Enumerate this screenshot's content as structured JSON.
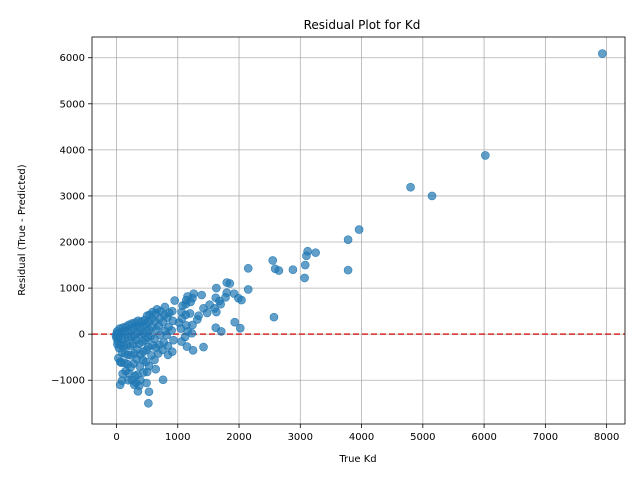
{
  "chart_data": {
    "type": "scatter",
    "title": "Residual Plot for Kd",
    "xlabel": "True Kd",
    "ylabel": "Residual (True - Predicted)",
    "xlim": [
      -400,
      8300
    ],
    "ylim": [
      -1950,
      6450
    ],
    "xticks": [
      0,
      1000,
      2000,
      3000,
      4000,
      5000,
      6000,
      7000,
      8000
    ],
    "yticks": [
      -1000,
      0,
      1000,
      2000,
      3000,
      4000,
      5000,
      6000
    ],
    "grid": true,
    "reference_line": {
      "y": 0,
      "color": "#d62728",
      "style": "dashed"
    },
    "point_color": "#1f77b4",
    "series": [
      {
        "points": [
          [
            7930,
            6090
          ],
          [
            6020,
            3880
          ],
          [
            4800,
            3190
          ],
          [
            5150,
            3000
          ],
          [
            3960,
            2270
          ],
          [
            3780,
            2050
          ],
          [
            3780,
            1390
          ],
          [
            3120,
            1800
          ],
          [
            3250,
            1770
          ],
          [
            3100,
            1700
          ],
          [
            3080,
            1500
          ],
          [
            3070,
            1220
          ],
          [
            2880,
            1400
          ],
          [
            2650,
            1380
          ],
          [
            2590,
            1420
          ],
          [
            2550,
            1600
          ],
          [
            2570,
            370
          ],
          [
            2150,
            1430
          ],
          [
            2150,
            970
          ],
          [
            2040,
            740
          ],
          [
            1990,
            780
          ],
          [
            2020,
            130
          ],
          [
            1920,
            880
          ],
          [
            1930,
            260
          ],
          [
            1850,
            1100
          ],
          [
            1800,
            1120
          ],
          [
            1800,
            900
          ],
          [
            1780,
            800
          ],
          [
            1700,
            650
          ],
          [
            1680,
            720
          ],
          [
            1710,
            60
          ],
          [
            1630,
            480
          ],
          [
            1630,
            1000
          ],
          [
            1620,
            790
          ],
          [
            1600,
            560
          ],
          [
            1620,
            140
          ],
          [
            1520,
            640
          ],
          [
            1480,
            460
          ],
          [
            1420,
            560
          ],
          [
            1420,
            -280
          ],
          [
            1390,
            850
          ],
          [
            1340,
            400
          ],
          [
            1320,
            320
          ],
          [
            1260,
            880
          ],
          [
            1240,
            780
          ],
          [
            1210,
            700
          ],
          [
            1200,
            450
          ],
          [
            1240,
            200
          ],
          [
            1230,
            20
          ],
          [
            1250,
            -350
          ],
          [
            1160,
            820
          ],
          [
            1140,
            740
          ],
          [
            1130,
            650
          ],
          [
            1130,
            420
          ],
          [
            1140,
            190
          ],
          [
            1160,
            60
          ],
          [
            1120,
            -60
          ],
          [
            1150,
            -270
          ],
          [
            1080,
            620
          ],
          [
            1060,
            480
          ],
          [
            1070,
            340
          ],
          [
            1050,
            120
          ],
          [
            1060,
            -160
          ],
          [
            1020,
            250
          ],
          [
            950,
            730
          ],
          [
            910,
            500
          ],
          [
            920,
            290
          ],
          [
            900,
            80
          ],
          [
            930,
            -130
          ],
          [
            910,
            -380
          ],
          [
            860,
            460
          ],
          [
            830,
            360
          ],
          [
            850,
            160
          ],
          [
            820,
            -20
          ],
          [
            840,
            -260
          ],
          [
            840,
            -450
          ],
          [
            790,
            590
          ],
          [
            780,
            420
          ],
          [
            760,
            260
          ],
          [
            790,
            70
          ],
          [
            770,
            -180
          ],
          [
            750,
            -340
          ],
          [
            760,
            -990
          ],
          [
            720,
            500
          ],
          [
            700,
            340
          ],
          [
            690,
            180
          ],
          [
            710,
            -20
          ],
          [
            700,
            -230
          ],
          [
            680,
            -420
          ],
          [
            660,
            540
          ],
          [
            640,
            450
          ],
          [
            630,
            280
          ],
          [
            650,
            100
          ],
          [
            620,
            -100
          ],
          [
            640,
            -290
          ],
          [
            640,
            -760
          ],
          [
            620,
            -560
          ],
          [
            590,
            480
          ],
          [
            570,
            330
          ],
          [
            580,
            150
          ],
          [
            560,
            -40
          ],
          [
            590,
            -240
          ],
          [
            570,
            -460
          ],
          [
            540,
            420
          ],
          [
            520,
            260
          ],
          [
            530,
            90
          ],
          [
            510,
            -80
          ],
          [
            520,
            -280
          ],
          [
            530,
            -690
          ],
          [
            500,
            400
          ],
          [
            480,
            220
          ],
          [
            490,
            60
          ],
          [
            470,
            -130
          ],
          [
            490,
            -340
          ],
          [
            480,
            -600
          ],
          [
            500,
            -820
          ],
          [
            490,
            -1060
          ],
          [
            530,
            -1250
          ],
          [
            520,
            -1500
          ],
          [
            450,
            300
          ],
          [
            430,
            180
          ],
          [
            440,
            20
          ],
          [
            420,
            -160
          ],
          [
            440,
            -380
          ],
          [
            430,
            -560
          ],
          [
            440,
            -830
          ],
          [
            400,
            270
          ],
          [
            380,
            140
          ],
          [
            390,
            -10
          ],
          [
            370,
            -210
          ],
          [
            390,
            -440
          ],
          [
            380,
            -700
          ],
          [
            390,
            -1000
          ],
          [
            370,
            -1120
          ],
          [
            350,
            290
          ],
          [
            330,
            170
          ],
          [
            340,
            30
          ],
          [
            320,
            -130
          ],
          [
            340,
            -330
          ],
          [
            330,
            -540
          ],
          [
            340,
            -880
          ],
          [
            320,
            -1060
          ],
          [
            350,
            -1240
          ],
          [
            300,
            250
          ],
          [
            280,
            120
          ],
          [
            290,
            -40
          ],
          [
            270,
            -220
          ],
          [
            290,
            -420
          ],
          [
            280,
            -640
          ],
          [
            300,
            -900
          ],
          [
            290,
            -1100
          ],
          [
            250,
            230
          ],
          [
            230,
            100
          ],
          [
            240,
            -60
          ],
          [
            220,
            -260
          ],
          [
            240,
            -460
          ],
          [
            230,
            -720
          ],
          [
            250,
            -1000
          ],
          [
            200,
            200
          ],
          [
            180,
            80
          ],
          [
            190,
            -70
          ],
          [
            170,
            -240
          ],
          [
            190,
            -450
          ],
          [
            180,
            -650
          ],
          [
            200,
            -850
          ],
          [
            190,
            -1000
          ],
          [
            150,
            160
          ],
          [
            130,
            60
          ],
          [
            140,
            -90
          ],
          [
            120,
            -250
          ],
          [
            140,
            -420
          ],
          [
            130,
            -620
          ],
          [
            150,
            -800
          ],
          [
            100,
            140
          ],
          [
            80,
            40
          ],
          [
            90,
            -100
          ],
          [
            70,
            -240
          ],
          [
            90,
            -400
          ],
          [
            80,
            -620
          ],
          [
            100,
            -860
          ],
          [
            90,
            -1010
          ],
          [
            60,
            -1100
          ],
          [
            50,
            120
          ],
          [
            40,
            20
          ],
          [
            30,
            -60
          ],
          [
            20,
            -160
          ],
          [
            40,
            -300
          ],
          [
            30,
            -520
          ],
          [
            10,
            60
          ],
          [
            5,
            10
          ],
          [
            0,
            -80
          ],
          [
            -10,
            -30
          ],
          [
            15,
            -220
          ],
          [
            60,
            -600
          ]
        ]
      }
    ]
  }
}
